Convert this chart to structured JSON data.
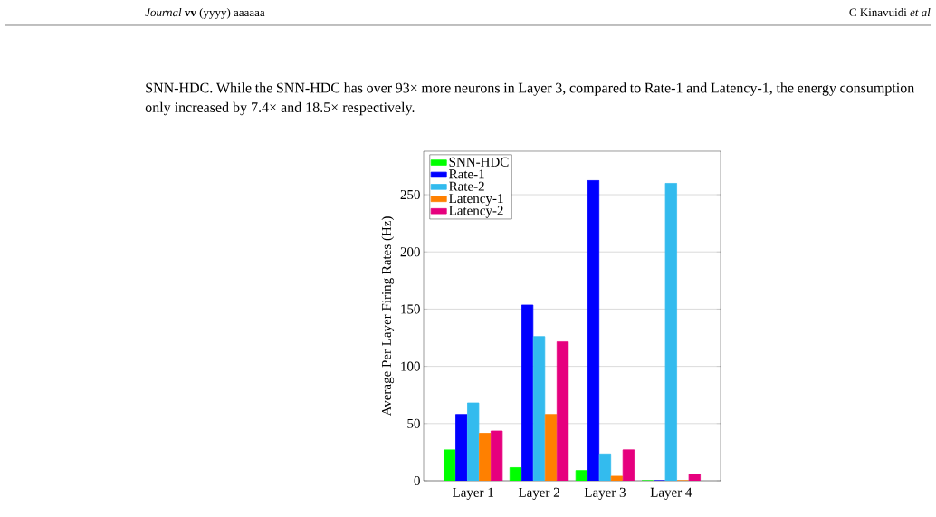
{
  "chart_data": {
    "type": "bar",
    "ylabel": "Average Per Layer Firing Rates (Hz)",
    "categories": [
      "Layer 1",
      "Layer 2",
      "Layer 3",
      "Layer 4"
    ],
    "series": [
      {
        "name": "SNN-HDC",
        "color": "#00ff00",
        "values": [
          27,
          11.5,
          9,
          0
        ]
      },
      {
        "name": "Rate-1",
        "color": "#0000ff",
        "values": [
          58,
          153.5,
          262.5,
          0
        ]
      },
      {
        "name": "Rate-2",
        "color": "#33bbee",
        "values": [
          68,
          126,
          23.5,
          260
        ]
      },
      {
        "name": "Latency-1",
        "color": "#ff8000",
        "values": [
          41.5,
          58,
          4,
          0
        ]
      },
      {
        "name": "Latency-2",
        "color": "#e6007e",
        "values": [
          43.5,
          121.5,
          27,
          5.5
        ]
      }
    ],
    "ylim": [
      0,
      288
    ],
    "yticks": [
      0,
      50,
      100,
      150,
      200,
      250
    ],
    "grid": "y",
    "legend": "top left",
    "annotations": [
      "*Journal* **vv** (yyyy) aaaaaa",
      "C Kinavuidi *et al*",
      "SNN-HDC. While the SNN-HDC has over 93× more neurons in Layer 3, compared to Rate-1 and Latency-1, the energy consumption only increased by 7.4× and 18.5× respectively."
    ]
  }
}
